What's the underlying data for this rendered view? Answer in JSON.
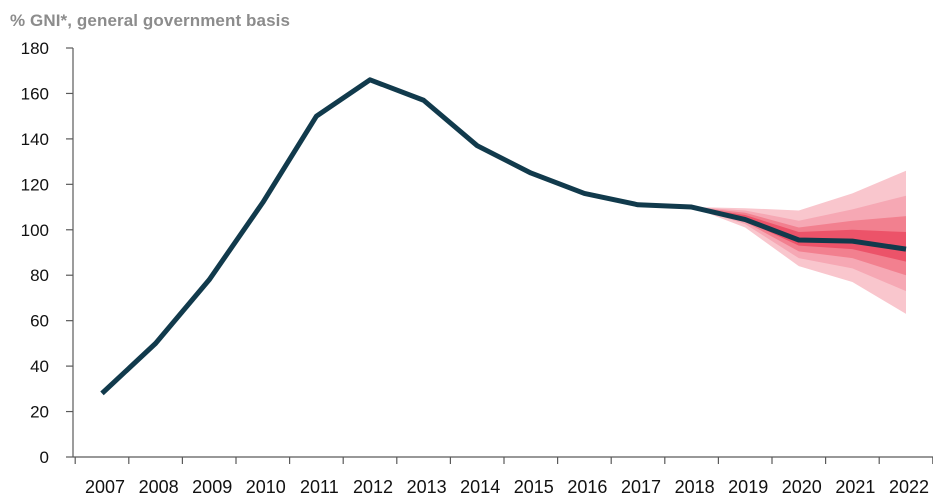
{
  "chart_data": {
    "type": "line",
    "title": "",
    "subtitle": "% GNI*, general government basis",
    "xlabel": "",
    "ylabel": "",
    "ylim": [
      0,
      180
    ],
    "yticks": [
      0,
      20,
      40,
      60,
      80,
      100,
      120,
      140,
      160,
      180
    ],
    "x": [
      "2007",
      "2008",
      "2009",
      "2010",
      "2011",
      "2012",
      "2013",
      "2014",
      "2015",
      "2016",
      "2017",
      "2018",
      "2019",
      "2020",
      "2021",
      "2022"
    ],
    "series": [
      {
        "values": [
          28,
          50,
          78,
          112,
          150,
          166,
          157,
          137,
          125,
          116,
          111,
          110,
          104.5,
          95.5,
          95,
          91.5
        ]
      }
    ],
    "fan": {
      "x": [
        "2018",
        "2019",
        "2020",
        "2021",
        "2022"
      ],
      "center": [
        110,
        104.5,
        95.5,
        95,
        91.5
      ],
      "bands": [
        {
          "upper": [
            110,
            109.5,
            108.5,
            116,
            126
          ],
          "lower": [
            110,
            101,
            84,
            77,
            63
          ]
        },
        {
          "upper": [
            110,
            108.5,
            104,
            109,
            115
          ],
          "lower": [
            110,
            102.5,
            87.5,
            83,
            73
          ]
        },
        {
          "upper": [
            110,
            107.5,
            101,
            104,
            106
          ],
          "lower": [
            110,
            103.5,
            90.5,
            87.5,
            80
          ]
        },
        {
          "upper": [
            110,
            106.5,
            99,
            100,
            99
          ],
          "lower": [
            110,
            104,
            93,
            91.5,
            86
          ]
        }
      ]
    },
    "colors": {
      "line": "#113a4c",
      "fan": [
        "#f9c6cd",
        "#f6a8b4",
        "#f2808f",
        "#ec5369"
      ],
      "axis": "#5a5a5a"
    },
    "grid": false,
    "legend": "none"
  }
}
